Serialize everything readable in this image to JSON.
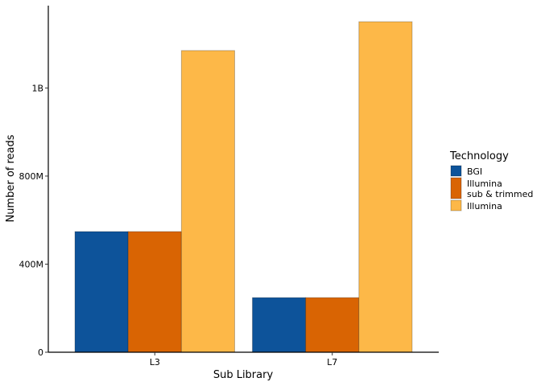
{
  "chart_data": {
    "type": "bar",
    "categories": [
      "L3",
      "L7"
    ],
    "series": [
      {
        "name": "BGI",
        "color": "#0d539a",
        "values": [
          548000000,
          248000000
        ]
      },
      {
        "name": "Illumina\nsub & trimmed",
        "color": "#d96403",
        "values": [
          548000000,
          248000000
        ]
      },
      {
        "name": "Illumina",
        "color": "#fdb848",
        "values": [
          1370000000,
          1501000000
        ]
      }
    ],
    "x_label": "Sub Library",
    "y_label": "Number of reads",
    "legend_title": "Technology",
    "ylim": [
      0,
      1574000000
    ],
    "yticks": [
      {
        "value": 0,
        "label": "0"
      },
      {
        "value": 400000000,
        "label": "400M"
      },
      {
        "value": 800000000,
        "label": "800M"
      },
      {
        "value": 1200000000,
        "label": "1B"
      }
    ],
    "legend": "right",
    "grid": false
  }
}
